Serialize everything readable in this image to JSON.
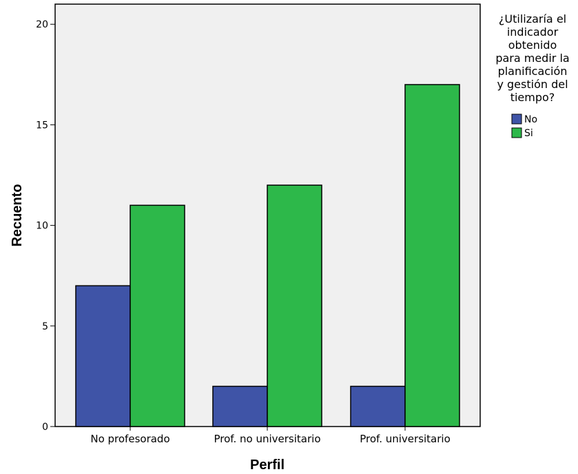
{
  "chart_data": {
    "type": "bar",
    "categories": [
      "No profesorado",
      "Prof. no universitario",
      "Prof. universitario"
    ],
    "series": [
      {
        "name": "No",
        "values": [
          7,
          2,
          2
        ],
        "color": "#3f54a7"
      },
      {
        "name": "Si",
        "values": [
          11,
          12,
          17
        ],
        "color": "#2db84a"
      }
    ],
    "xlabel": "Perfil",
    "ylabel": "Recuento",
    "ylim": [
      0,
      21
    ],
    "yticks": [
      0,
      5,
      10,
      15,
      20
    ],
    "grid": false,
    "plot_background": "#f0f0f0",
    "legend": {
      "title_lines": [
        "¿Utilizaría el",
        "indicador",
        "obtenido",
        "para medir la",
        "planificación",
        "y gestión del",
        "tiempo?"
      ],
      "placement": "right"
    }
  }
}
